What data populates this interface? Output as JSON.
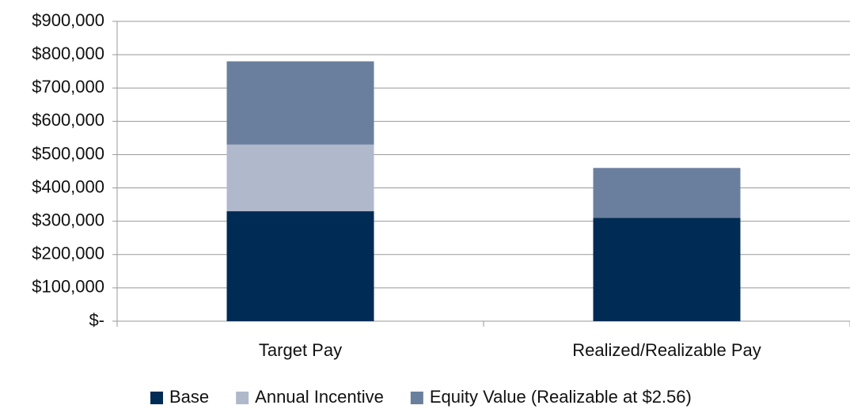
{
  "chart_data": {
    "type": "stacked_bar",
    "categories": [
      "Target Pay",
      "Realized/Realizable Pay"
    ],
    "series": [
      {
        "name": "Base",
        "color": "#002b54",
        "values": [
          330000,
          310000
        ]
      },
      {
        "name": "Annual Incentive",
        "color": "#b0b8cc",
        "values": [
          200000,
          0
        ]
      },
      {
        "name": "Equity Value (Realizable at $2.56)",
        "color": "#6a7f9d",
        "values": [
          250000,
          150000
        ]
      }
    ],
    "ylim": [
      0,
      900000
    ],
    "yticks": [
      {
        "value": 0,
        "label": "$-"
      },
      {
        "value": 100000,
        "label": "$100,000"
      },
      {
        "value": 200000,
        "label": "$200,000"
      },
      {
        "value": 300000,
        "label": "$300,000"
      },
      {
        "value": 400000,
        "label": "$400,000"
      },
      {
        "value": 500000,
        "label": "$500,000"
      },
      {
        "value": 600000,
        "label": "$600,000"
      },
      {
        "value": 700000,
        "label": "$700,000"
      },
      {
        "value": 800000,
        "label": "$800,000"
      },
      {
        "value": 900000,
        "label": "$900,000"
      }
    ],
    "grid": true,
    "legend": "bottom"
  }
}
